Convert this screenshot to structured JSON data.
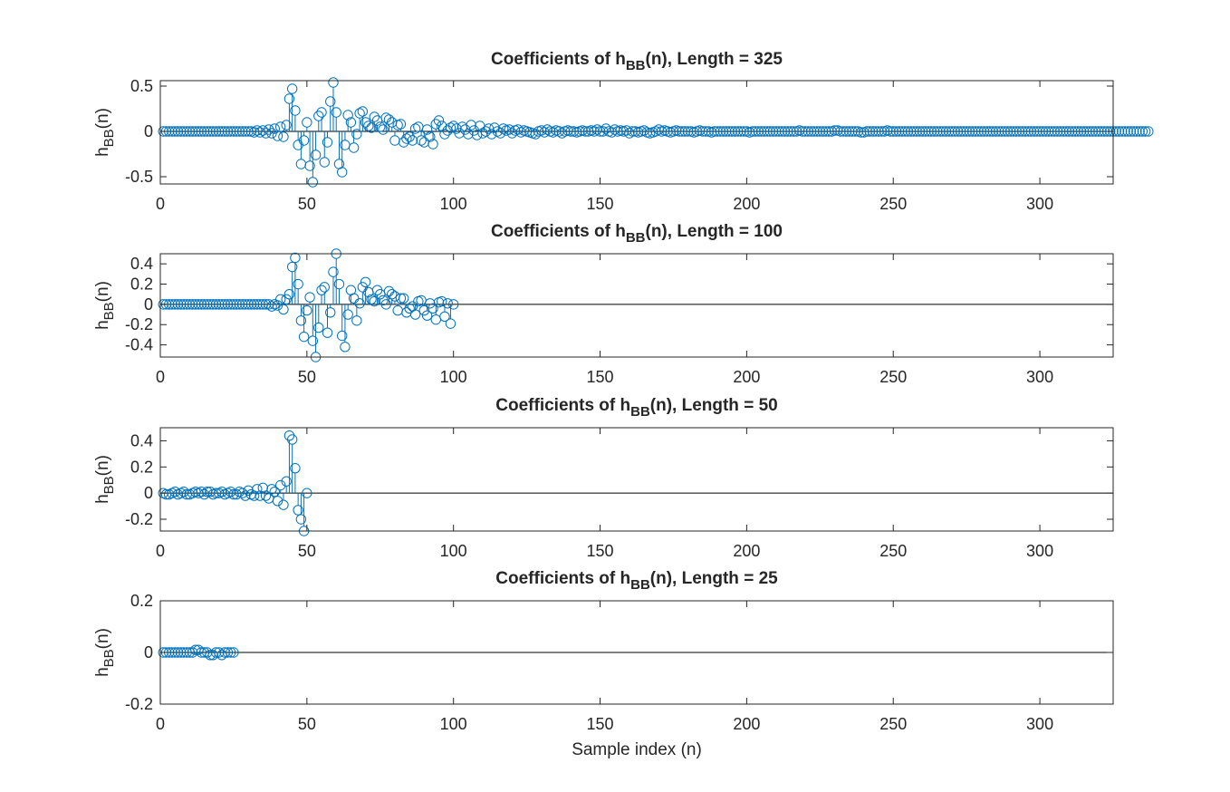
{
  "colors": {
    "stem": "#0072BD",
    "axis": "#262626",
    "baseline": "#000000"
  },
  "chart_data": [
    {
      "type": "stem",
      "title_prefix": "Coefficients of h",
      "title_sub": "BB",
      "title_suffix": "(n), Length = 325",
      "ylabel_prefix": "h",
      "ylabel_sub": "BB",
      "ylabel_suffix": "(n)",
      "xlabel": "",
      "xlim": [
        0,
        325
      ],
      "ylim": [
        -0.58,
        0.56
      ],
      "xticks": [
        0,
        50,
        100,
        150,
        200,
        250,
        300
      ],
      "yticks": [
        -0.5,
        0,
        0.5
      ],
      "ytick_labels": [
        "-0.5",
        "0",
        "0.5"
      ],
      "length": 325,
      "values": [
        0.0,
        0.0,
        0.0,
        0.0,
        0.0,
        0.0,
        0.0,
        0.0,
        0.0,
        0.0,
        0.0,
        0.0,
        0.0,
        0.0,
        0.0,
        0.0,
        0.0,
        0.0,
        0.0,
        0.0,
        0.0,
        0.0,
        0.0,
        0.0,
        0.0,
        0.0,
        0.0,
        0.0,
        0.0,
        0.0,
        0.0,
        -0.01,
        0.01,
        -0.01,
        0.01,
        -0.02,
        0.02,
        -0.02,
        0.03,
        -0.05,
        0.05,
        -0.06,
        0.07,
        0.36,
        0.47,
        0.23,
        -0.15,
        -0.36,
        -0.1,
        0.1,
        -0.38,
        -0.56,
        -0.26,
        0.17,
        0.21,
        -0.34,
        -0.12,
        0.33,
        0.54,
        0.21,
        -0.36,
        -0.45,
        -0.15,
        0.18,
        0.1,
        -0.18,
        -0.03,
        0.2,
        0.22,
        0.1,
        0.06,
        0.04,
        0.16,
        0.12,
        0.05,
        0.02,
        0.15,
        0.13,
        0.1,
        -0.1,
        0.07,
        0.08,
        -0.12,
        -0.08,
        -0.06,
        -0.1,
        0.03,
        0.05,
        -0.1,
        -0.12,
        0.02,
        -0.06,
        -0.14,
        0.08,
        0.12,
        0.06,
        -0.03,
        0.01,
        0.04,
        0.06,
        0.03,
        -0.02,
        0.05,
        0.02,
        -0.03,
        0.07,
        0.01,
        -0.04,
        0.06,
        -0.02,
        0.0,
        0.03,
        -0.03,
        0.04,
        0.0,
        -0.02,
        0.03,
        0.01,
        0.02,
        -0.02,
        0.01,
        0.02,
        -0.01,
        0.01,
        0.0,
        -0.01,
        -0.02,
        -0.03,
        0.0,
        0.01,
        -0.01,
        0.02,
        0.0,
        -0.01,
        0.01,
        0.0,
        -0.02,
        0.0,
        0.01,
        0.0,
        0.0,
        -0.01,
        0.0,
        0.01,
        0.0,
        0.0,
        0.01,
        0.0,
        0.02,
        0.0,
        0.0,
        0.03,
        0.0,
        -0.01,
        0.02,
        0.0,
        0.01,
        0.0,
        0.01,
        -0.02,
        0.0,
        0.0,
        -0.01,
        0.0,
        0.01,
        -0.01,
        -0.02,
        -0.01,
        0.0,
        0.02,
        0.0,
        0.01,
        0.0,
        -0.01,
        0.0,
        0.01,
        0.0,
        0.0,
        0.0,
        0.0,
        0.0,
        -0.01,
        0.0,
        0.01,
        0.0,
        0.0,
        0.0,
        -0.01,
        0.0,
        0.0,
        0.0,
        0.0,
        0.0,
        0.0,
        0.0,
        0.0,
        0.0,
        0.0,
        0.0,
        0.0,
        -0.01,
        0.0,
        0.0,
        0.0,
        0.0,
        0.0,
        0.0,
        0.0,
        0.0,
        0.0,
        0.0,
        0.0,
        0.0,
        0.0,
        0.0,
        0.0,
        0.0,
        0.01,
        0.0,
        0.0,
        0.0,
        0.0,
        0.0,
        0.0,
        0.0,
        0.0,
        0.0,
        0.0,
        0.0,
        0.01,
        0.01,
        0.0,
        0.0,
        0.0,
        0.0,
        0.0,
        0.0,
        0.0,
        -0.01,
        -0.01,
        0.0,
        0.0,
        0.0,
        0.0,
        0.0,
        0.0,
        0.0,
        0.01,
        0.0,
        0.0,
        0.0,
        0.0,
        0.0,
        0.0,
        0.0,
        0.0,
        0.0,
        0.0,
        0.0,
        0.0,
        0.0,
        0.0,
        0.0,
        0.0,
        0.0,
        0.0,
        0.0,
        0.0,
        0.0,
        0.0,
        0.0,
        0.0,
        0.0,
        0.0,
        0.0,
        0.0,
        0.0,
        0.0,
        0.0,
        0.0,
        0.0,
        0.0,
        0.0,
        0.0,
        0.0,
        0.0,
        0.0,
        0.0,
        0.0,
        0.0,
        0.0,
        0.0,
        0.0,
        0.0,
        0.0,
        0.0,
        0.0,
        0.0,
        0.0,
        0.0,
        0.0,
        0.0,
        0.0,
        0.0,
        0.0,
        0.0,
        0.0,
        0.0,
        0.0,
        0.0,
        0.0,
        0.0,
        0.0,
        0.0,
        0.0,
        0.0,
        0.0,
        0.0,
        0.0,
        0.0,
        0.0,
        0.0,
        0.0,
        0.0,
        0.0,
        0.0,
        0.0,
        0.0,
        0.0,
        0.0,
        0.0,
        0.0,
        0.0,
        0.0,
        0.0,
        0.0,
        0.0
      ]
    },
    {
      "type": "stem",
      "title_prefix": "Coefficients of h",
      "title_sub": "BB",
      "title_suffix": "(n), Length = 100",
      "ylabel_prefix": "h",
      "ylabel_sub": "BB",
      "ylabel_suffix": "(n)",
      "xlabel": "",
      "xlim": [
        0,
        325
      ],
      "ylim": [
        -0.52,
        0.5
      ],
      "xticks": [
        0,
        50,
        100,
        150,
        200,
        250,
        300
      ],
      "yticks": [
        -0.4,
        -0.2,
        0,
        0.2,
        0.4
      ],
      "ytick_labels": [
        "-0.4",
        "-0.2",
        "0",
        "0.2",
        "0.4"
      ],
      "length": 100,
      "values": [
        0.0,
        0.0,
        0.0,
        0.0,
        0.0,
        0.0,
        0.0,
        0.0,
        0.0,
        0.0,
        0.0,
        0.0,
        0.0,
        0.0,
        0.0,
        0.0,
        0.0,
        0.0,
        0.0,
        0.0,
        0.0,
        0.0,
        0.0,
        0.0,
        0.0,
        0.0,
        0.0,
        0.0,
        0.0,
        0.0,
        0.0,
        0.0,
        0.0,
        0.0,
        0.0,
        0.0,
        0.0,
        -0.02,
        0.0,
        -0.01,
        0.05,
        -0.05,
        0.05,
        0.1,
        0.37,
        0.46,
        0.2,
        -0.16,
        -0.32,
        -0.06,
        0.07,
        -0.36,
        -0.52,
        -0.23,
        0.14,
        0.17,
        -0.28,
        -0.08,
        0.32,
        0.5,
        0.2,
        -0.31,
        -0.42,
        -0.1,
        0.14,
        0.06,
        -0.16,
        0.01,
        0.17,
        0.22,
        0.12,
        0.05,
        0.03,
        0.14,
        0.1,
        0.04,
        0.0,
        0.13,
        0.1,
        0.08,
        -0.06,
        0.06,
        0.06,
        -0.08,
        -0.04,
        -0.02,
        -0.1,
        0.03,
        0.04,
        -0.06,
        -0.11,
        0.01,
        -0.04,
        -0.15,
        0.02,
        0.03,
        -0.12,
        0.01,
        -0.19,
        0.0
      ]
    },
    {
      "type": "stem",
      "title_prefix": "Coefficients of h",
      "title_sub": "BB",
      "title_suffix": "(n), Length = 50",
      "ylabel_prefix": "h",
      "ylabel_sub": "BB",
      "ylabel_suffix": "(n)",
      "xlabel": "",
      "xlim": [
        0,
        325
      ],
      "ylim": [
        -0.29,
        0.5
      ],
      "xticks": [
        0,
        50,
        100,
        150,
        200,
        250,
        300
      ],
      "yticks": [
        -0.2,
        0,
        0.2,
        0.4
      ],
      "ytick_labels": [
        "-0.2",
        "0",
        "0.2",
        "0.4"
      ],
      "length": 50,
      "values": [
        0.0,
        -0.01,
        -0.01,
        0.0,
        0.01,
        -0.01,
        0.0,
        0.01,
        -0.01,
        -0.01,
        0.0,
        0.01,
        0.0,
        0.01,
        -0.01,
        0.01,
        0.01,
        -0.01,
        0.0,
        0.0,
        0.01,
        -0.01,
        0.0,
        0.01,
        -0.01,
        -0.01,
        0.01,
        0.0,
        -0.02,
        0.02,
        -0.01,
        -0.02,
        0.03,
        -0.02,
        0.04,
        -0.02,
        -0.04,
        0.03,
        0.01,
        -0.06,
        0.06,
        -0.09,
        0.09,
        0.44,
        0.41,
        0.19,
        -0.13,
        -0.2,
        -0.29,
        0.0
      ]
    },
    {
      "type": "stem",
      "title_prefix": "Coefficients of h",
      "title_sub": "BB",
      "title_suffix": "(n), Length = 25",
      "ylabel_prefix": "h",
      "ylabel_sub": "BB",
      "ylabel_suffix": "(n)",
      "xlabel": "Sample index (n)",
      "xlim": [
        0,
        325
      ],
      "ylim": [
        -0.2,
        0.2
      ],
      "xticks": [
        0,
        50,
        100,
        150,
        200,
        250,
        300
      ],
      "yticks": [
        -0.2,
        0,
        0.2
      ],
      "ytick_labels": [
        "-0.2",
        "0",
        "0.2"
      ],
      "length": 25,
      "values": [
        0.0,
        0.0,
        0.0,
        0.0,
        0.0,
        0.0,
        0.0,
        0.0,
        0.0,
        0.0,
        0.0,
        0.01,
        0.01,
        0.0,
        0.0,
        0.0,
        -0.01,
        -0.01,
        0.0,
        0.0,
        -0.01,
        0.0,
        0.0,
        0.0,
        0.0
      ]
    }
  ]
}
